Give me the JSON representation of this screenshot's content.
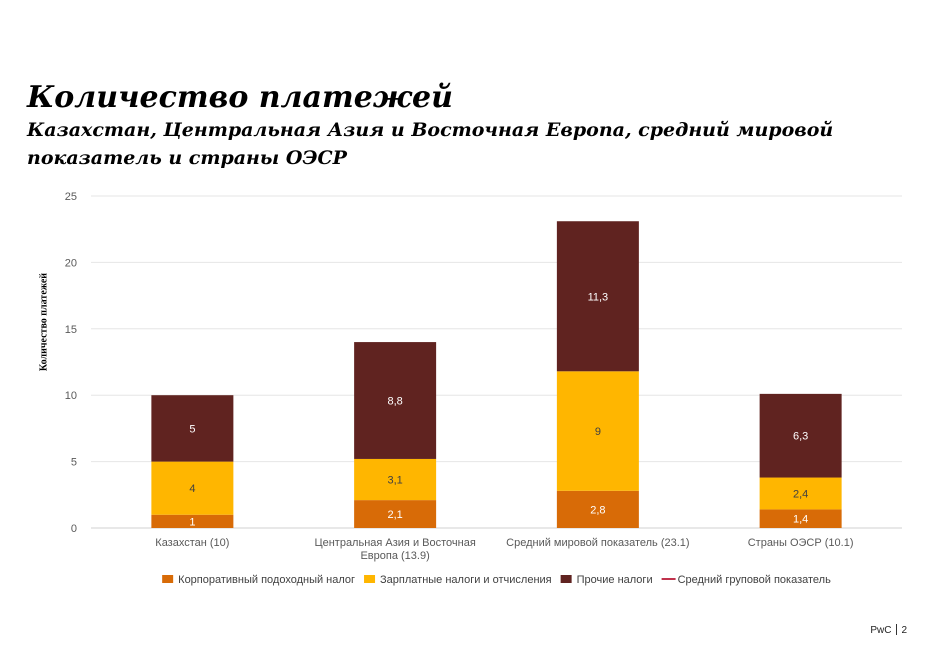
{
  "title": "Количество платежей",
  "subtitle": "Казахстан, Центральная Азия и Восточная Европа, средний мировой показатель и страны ОЭСР",
  "footer": {
    "brand": "PwC",
    "page": "2"
  },
  "chart_data": {
    "type": "bar",
    "stacked": true,
    "title": "",
    "xlabel": "",
    "ylabel": "Количество платежей",
    "ylim": [
      0,
      25
    ],
    "yticks": [
      0,
      5,
      10,
      15,
      20,
      25
    ],
    "grid": true,
    "legend_position": "bottom",
    "categories": [
      [
        "Казахстан (10)"
      ],
      [
        "Центральная Азия и Восточная",
        "Европа (13.9)"
      ],
      [
        "Средний мировой показатель (23.1)"
      ],
      [
        "Страны ОЭСР (10.1)"
      ]
    ],
    "series": [
      {
        "name": "Корпоративный подоходный налог",
        "color": "#d86b07",
        "values": [
          1,
          2.1,
          2.8,
          1.4
        ],
        "labels": [
          "1",
          "2,1",
          "2,8",
          "1,4"
        ]
      },
      {
        "name": "Зарплатные налоги и отчисления",
        "color": "#ffb600",
        "values": [
          4,
          3.1,
          9,
          2.4
        ],
        "labels": [
          "4",
          "3,1",
          "9",
          "2,4"
        ]
      },
      {
        "name": "Прочие налоги",
        "color": "#602320",
        "values": [
          5,
          8.8,
          11.3,
          6.3
        ],
        "labels": [
          "5",
          "8,8",
          "11,3",
          "6,3"
        ]
      }
    ],
    "legend": [
      {
        "name": "Корпоративный подоходный налог",
        "color": "#d86b07",
        "kind": "box"
      },
      {
        "name": "Зарплатные налоги и отчисления",
        "color": "#ffb600",
        "kind": "box"
      },
      {
        "name": "Прочие налоги",
        "color": "#602320",
        "kind": "box"
      },
      {
        "name": "Средний груповой показатель",
        "color": "#c0324c",
        "kind": "line"
      }
    ]
  }
}
